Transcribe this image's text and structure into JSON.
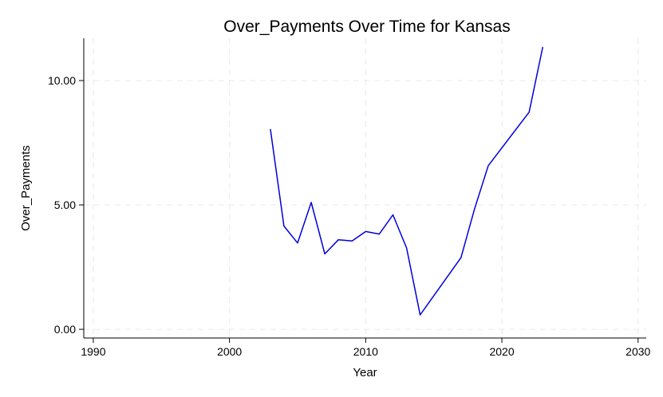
{
  "chart_data": {
    "type": "line",
    "title": "Over_Payments Over Time for Kansas",
    "xlabel": "Year",
    "ylabel": "Over_Payments",
    "xlim": [
      1989.3,
      2030.6
    ],
    "ylim": [
      -0.35,
      11.7
    ],
    "xticks": [
      1990,
      2000,
      2010,
      2020,
      2030
    ],
    "xtick_labels": [
      "1990",
      "2000",
      "2010",
      "2020",
      "2030"
    ],
    "yticks": [
      0,
      5,
      10
    ],
    "ytick_labels": [
      "0.00",
      "5.00",
      "10.00"
    ],
    "grid": true,
    "legend": false,
    "series": [
      {
        "color": "#0000dd",
        "x": [
          2003,
          2004,
          2005,
          2006,
          2007,
          2008,
          2009,
          2010,
          2011,
          2012,
          2013,
          2014,
          2017,
          2018,
          2019,
          2022,
          2023
        ],
        "y": [
          8.05,
          4.15,
          3.47,
          5.1,
          3.03,
          3.6,
          3.55,
          3.93,
          3.83,
          4.6,
          3.27,
          0.58,
          2.88,
          4.85,
          6.58,
          8.73,
          11.35
        ]
      }
    ]
  }
}
